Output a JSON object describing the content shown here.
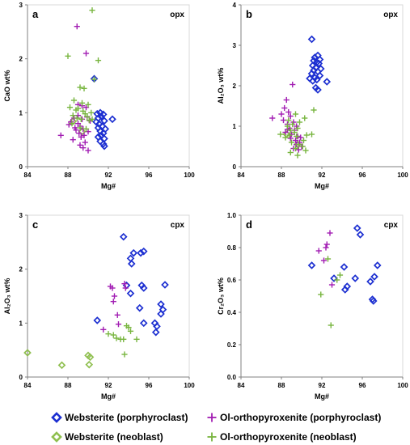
{
  "colors": {
    "websterite_porph": "#1c2fd1",
    "websterite_neo": "#8fbf4f",
    "ol_porph": "#a21db3",
    "ol_neo": "#78b53f"
  },
  "legend": [
    {
      "label": "Websterite (porphyroclast)",
      "series": "websterite_porph",
      "marker": "diamond"
    },
    {
      "label": "Ol-orthopyroxenite (porphyroclast)",
      "series": "ol_porph",
      "marker": "plus"
    },
    {
      "label": "Websterite (neoblast)",
      "series": "websterite_neo",
      "marker": "diamond"
    },
    {
      "label": "Ol-orthopyroxenite (neoblast)",
      "series": "ol_neo",
      "marker": "plus"
    }
  ],
  "chart_data": [
    {
      "type": "scatter",
      "panel": "a",
      "title": "opx",
      "xlabel": "Mg#",
      "ylabel": "CaO wt%",
      "xlim": [
        84,
        100
      ],
      "ylim": [
        0,
        3
      ],
      "xticks": [
        84,
        88,
        92,
        96,
        100
      ],
      "yticks": [
        0,
        1,
        2,
        3
      ],
      "series": [
        {
          "key": "websterite_porph",
          "marker": "diamond",
          "points": [
            [
              90.6,
              1.63
            ],
            [
              91.2,
              1.0
            ],
            [
              91.5,
              0.97
            ],
            [
              91.3,
              0.93
            ],
            [
              91.0,
              0.9
            ],
            [
              91.6,
              0.85
            ],
            [
              90.8,
              0.83
            ],
            [
              91.1,
              0.79
            ],
            [
              91.4,
              0.75
            ],
            [
              91.0,
              0.72
            ],
            [
              91.7,
              0.7
            ],
            [
              91.2,
              0.66
            ],
            [
              91.5,
              0.62
            ],
            [
              91.3,
              0.58
            ],
            [
              91.0,
              0.55
            ],
            [
              91.6,
              0.52
            ],
            [
              91.2,
              0.47
            ],
            [
              91.5,
              0.42
            ],
            [
              91.6,
              0.38
            ],
            [
              92.4,
              0.88
            ],
            [
              90.9,
              0.98
            ]
          ]
        },
        {
          "key": "websterite_neo",
          "marker": "diamond",
          "points": [
            [
              88.5,
              0.84
            ],
            [
              89.4,
              0.65
            ]
          ]
        },
        {
          "key": "ol_porph",
          "marker": "plus",
          "points": [
            [
              88.9,
              2.6
            ],
            [
              89.8,
              2.1
            ],
            [
              87.3,
              0.58
            ],
            [
              88.3,
              0.83
            ],
            [
              88.6,
              0.9
            ],
            [
              89.0,
              1.15
            ],
            [
              89.4,
              1.13
            ],
            [
              89.8,
              1.1
            ],
            [
              89.0,
              0.8
            ],
            [
              89.2,
              0.75
            ],
            [
              89.5,
              0.7
            ],
            [
              88.8,
              0.68
            ],
            [
              89.1,
              0.62
            ],
            [
              89.6,
              0.58
            ],
            [
              89.3,
              0.55
            ],
            [
              88.5,
              0.5
            ],
            [
              89.7,
              0.45
            ],
            [
              89.2,
              0.4
            ],
            [
              89.5,
              0.35
            ],
            [
              90.0,
              0.3
            ],
            [
              89.0,
              0.95
            ],
            [
              89.9,
              0.92
            ],
            [
              88.7,
              0.72
            ],
            [
              90.2,
              0.85
            ],
            [
              88.1,
              0.78
            ],
            [
              89.4,
              0.88
            ],
            [
              90.0,
              0.65
            ]
          ]
        },
        {
          "key": "ol_neo",
          "marker": "plus",
          "points": [
            [
              90.4,
              2.9
            ],
            [
              88.0,
              2.05
            ],
            [
              91.0,
              1.97
            ],
            [
              90.6,
              1.62
            ],
            [
              89.2,
              1.47
            ],
            [
              89.6,
              1.45
            ],
            [
              88.6,
              1.23
            ],
            [
              89.4,
              1.18
            ],
            [
              90.0,
              1.15
            ],
            [
              88.2,
              1.1
            ],
            [
              89.0,
              1.08
            ],
            [
              88.8,
              1.05
            ],
            [
              89.5,
              1.03
            ],
            [
              90.3,
              1.0
            ],
            [
              89.7,
              0.98
            ],
            [
              88.5,
              0.95
            ],
            [
              89.9,
              0.93
            ],
            [
              88.9,
              0.9
            ],
            [
              89.3,
              0.88
            ],
            [
              90.1,
              0.86
            ],
            [
              89.2,
              0.72
            ],
            [
              89.8,
              0.7
            ],
            [
              90.4,
              0.88
            ],
            [
              88.4,
              0.8
            ]
          ]
        }
      ]
    },
    {
      "type": "scatter",
      "panel": "b",
      "title": "opx",
      "xlabel": "Mg#",
      "ylabel": "Al₂O₃ wt%",
      "xlim": [
        84,
        100
      ],
      "ylim": [
        0,
        4
      ],
      "xticks": [
        84,
        88,
        92,
        96,
        100
      ],
      "yticks": [
        0,
        1,
        2,
        3,
        4
      ],
      "series": [
        {
          "key": "websterite_porph",
          "marker": "diamond",
          "points": [
            [
              91.0,
              3.15
            ],
            [
              91.6,
              2.75
            ],
            [
              91.3,
              2.7
            ],
            [
              91.8,
              2.65
            ],
            [
              91.2,
              2.62
            ],
            [
              91.5,
              2.58
            ],
            [
              91.7,
              2.55
            ],
            [
              91.1,
              2.5
            ],
            [
              91.4,
              2.45
            ],
            [
              91.9,
              2.42
            ],
            [
              91.2,
              2.38
            ],
            [
              91.6,
              2.35
            ],
            [
              91.0,
              2.3
            ],
            [
              91.8,
              2.25
            ],
            [
              91.3,
              2.2
            ],
            [
              90.8,
              2.18
            ],
            [
              91.5,
              2.15
            ],
            [
              91.1,
              2.12
            ],
            [
              92.5,
              2.1
            ],
            [
              91.4,
              1.95
            ],
            [
              91.6,
              1.9
            ]
          ]
        },
        {
          "key": "websterite_neo",
          "marker": "diamond",
          "points": [
            [
              88.5,
              0.8
            ],
            [
              89.6,
              0.55
            ]
          ]
        },
        {
          "key": "ol_porph",
          "marker": "plus",
          "points": [
            [
              89.1,
              2.03
            ],
            [
              88.5,
              1.65
            ],
            [
              88.3,
              1.45
            ],
            [
              88.7,
              1.35
            ],
            [
              88.0,
              1.3
            ],
            [
              88.9,
              1.25
            ],
            [
              87.1,
              1.2
            ],
            [
              88.2,
              1.15
            ],
            [
              89.2,
              1.1
            ],
            [
              88.6,
              1.05
            ],
            [
              89.5,
              1.0
            ],
            [
              88.8,
              0.95
            ],
            [
              89.3,
              0.9
            ],
            [
              88.4,
              0.85
            ],
            [
              89.0,
              0.8
            ],
            [
              89.6,
              0.75
            ],
            [
              88.9,
              0.7
            ],
            [
              89.4,
              0.65
            ],
            [
              89.8,
              0.6
            ],
            [
              89.5,
              0.55
            ],
            [
              90.0,
              0.5
            ],
            [
              89.2,
              0.45
            ],
            [
              89.7,
              0.42
            ],
            [
              88.6,
              0.92
            ],
            [
              89.9,
              0.72
            ]
          ]
        },
        {
          "key": "ol_neo",
          "marker": "plus",
          "points": [
            [
              91.2,
              1.4
            ],
            [
              89.4,
              1.3
            ],
            [
              90.3,
              1.2
            ],
            [
              88.7,
              1.15
            ],
            [
              89.8,
              1.1
            ],
            [
              89.1,
              1.05
            ],
            [
              88.6,
              1.0
            ],
            [
              89.6,
              0.95
            ],
            [
              88.9,
              0.9
            ],
            [
              89.3,
              0.85
            ],
            [
              87.9,
              0.8
            ],
            [
              88.8,
              0.78
            ],
            [
              90.5,
              0.78
            ],
            [
              91.0,
              0.8
            ],
            [
              89.5,
              0.75
            ],
            [
              88.4,
              0.72
            ],
            [
              90.2,
              0.65
            ],
            [
              89.0,
              0.6
            ],
            [
              89.7,
              0.55
            ],
            [
              90.1,
              0.5
            ],
            [
              89.4,
              0.45
            ],
            [
              90.4,
              0.4
            ],
            [
              88.9,
              0.35
            ],
            [
              89.6,
              0.28
            ]
          ]
        }
      ]
    },
    {
      "type": "scatter",
      "panel": "c",
      "title": "cpx",
      "xlabel": "Mg#",
      "ylabel": "Al₂O₃ wt%",
      "xlim": [
        84,
        100
      ],
      "ylim": [
        0,
        3
      ],
      "xticks": [
        84,
        88,
        92,
        96,
        100
      ],
      "yticks": [
        0,
        1,
        2,
        3
      ],
      "series": [
        {
          "key": "websterite_porph",
          "marker": "diamond",
          "points": [
            [
              93.5,
              2.6
            ],
            [
              95.5,
              2.33
            ],
            [
              95.2,
              2.3
            ],
            [
              94.5,
              2.3
            ],
            [
              94.2,
              2.2
            ],
            [
              94.3,
              2.1
            ],
            [
              97.6,
              1.71
            ],
            [
              95.3,
              1.7
            ],
            [
              95.5,
              1.65
            ],
            [
              93.8,
              1.7
            ],
            [
              94.2,
              1.55
            ],
            [
              97.2,
              1.35
            ],
            [
              97.4,
              1.25
            ],
            [
              95.1,
              1.28
            ],
            [
              97.2,
              1.17
            ],
            [
              90.9,
              1.05
            ],
            [
              95.5,
              1.0
            ],
            [
              96.6,
              1.0
            ],
            [
              96.8,
              0.94
            ],
            [
              96.7,
              0.83
            ]
          ]
        },
        {
          "key": "websterite_neo",
          "marker": "diamond",
          "points": [
            [
              84.0,
              0.45
            ],
            [
              87.4,
              0.22
            ],
            [
              90.0,
              0.4
            ],
            [
              90.2,
              0.37
            ],
            [
              90.1,
              0.23
            ]
          ]
        },
        {
          "key": "ol_porph",
          "marker": "plus",
          "points": [
            [
              92.2,
              1.68
            ],
            [
              92.4,
              1.65
            ],
            [
              93.6,
              1.73
            ],
            [
              93.7,
              1.65
            ],
            [
              92.6,
              1.5
            ],
            [
              92.5,
              1.4
            ],
            [
              92.9,
              1.15
            ],
            [
              93.0,
              0.98
            ],
            [
              91.5,
              0.88
            ]
          ]
        },
        {
          "key": "ol_neo",
          "marker": "plus",
          "points": [
            [
              92.0,
              0.8
            ],
            [
              92.5,
              0.78
            ],
            [
              92.8,
              0.72
            ],
            [
              93.2,
              0.7
            ],
            [
              93.5,
              0.7
            ],
            [
              93.8,
              0.95
            ],
            [
              94.0,
              0.92
            ],
            [
              94.2,
              0.85
            ],
            [
              94.8,
              0.7
            ],
            [
              93.6,
              0.42
            ]
          ]
        }
      ]
    },
    {
      "type": "scatter",
      "panel": "d",
      "title": "cpx",
      "xlabel": "Mg#",
      "ylabel": "Cr₂O₃ wt%",
      "xlim": [
        84,
        100
      ],
      "ylim": [
        0,
        1
      ],
      "xticks": [
        84,
        88,
        92,
        96,
        100
      ],
      "yticks": [
        0,
        0.2,
        0.4,
        0.6,
        0.8,
        1
      ],
      "ytick_labels": [
        "0.0",
        "0.2",
        "0.4",
        "0.6",
        "0.8",
        "1.0"
      ],
      "series": [
        {
          "key": "websterite_porph",
          "marker": "diamond",
          "points": [
            [
              95.5,
              0.92
            ],
            [
              95.8,
              0.88
            ],
            [
              91.0,
              0.69
            ],
            [
              97.5,
              0.69
            ],
            [
              94.2,
              0.68
            ],
            [
              97.2,
              0.62
            ],
            [
              93.2,
              0.61
            ],
            [
              95.3,
              0.61
            ],
            [
              96.8,
              0.59
            ],
            [
              94.5,
              0.56
            ],
            [
              94.3,
              0.54
            ],
            [
              97.0,
              0.48
            ],
            [
              97.1,
              0.47
            ]
          ]
        },
        {
          "key": "websterite_neo",
          "marker": "diamond",
          "points": []
        },
        {
          "key": "ol_porph",
          "marker": "plus",
          "points": [
            [
              92.8,
              0.89
            ],
            [
              92.5,
              0.82
            ],
            [
              92.4,
              0.8
            ],
            [
              91.7,
              0.78
            ],
            [
              92.2,
              0.72
            ],
            [
              93.0,
              0.57
            ]
          ]
        },
        {
          "key": "ol_neo",
          "marker": "plus",
          "points": [
            [
              92.6,
              0.73
            ],
            [
              93.8,
              0.63
            ],
            [
              93.5,
              0.6
            ],
            [
              91.9,
              0.51
            ],
            [
              92.9,
              0.32
            ]
          ]
        }
      ]
    }
  ]
}
